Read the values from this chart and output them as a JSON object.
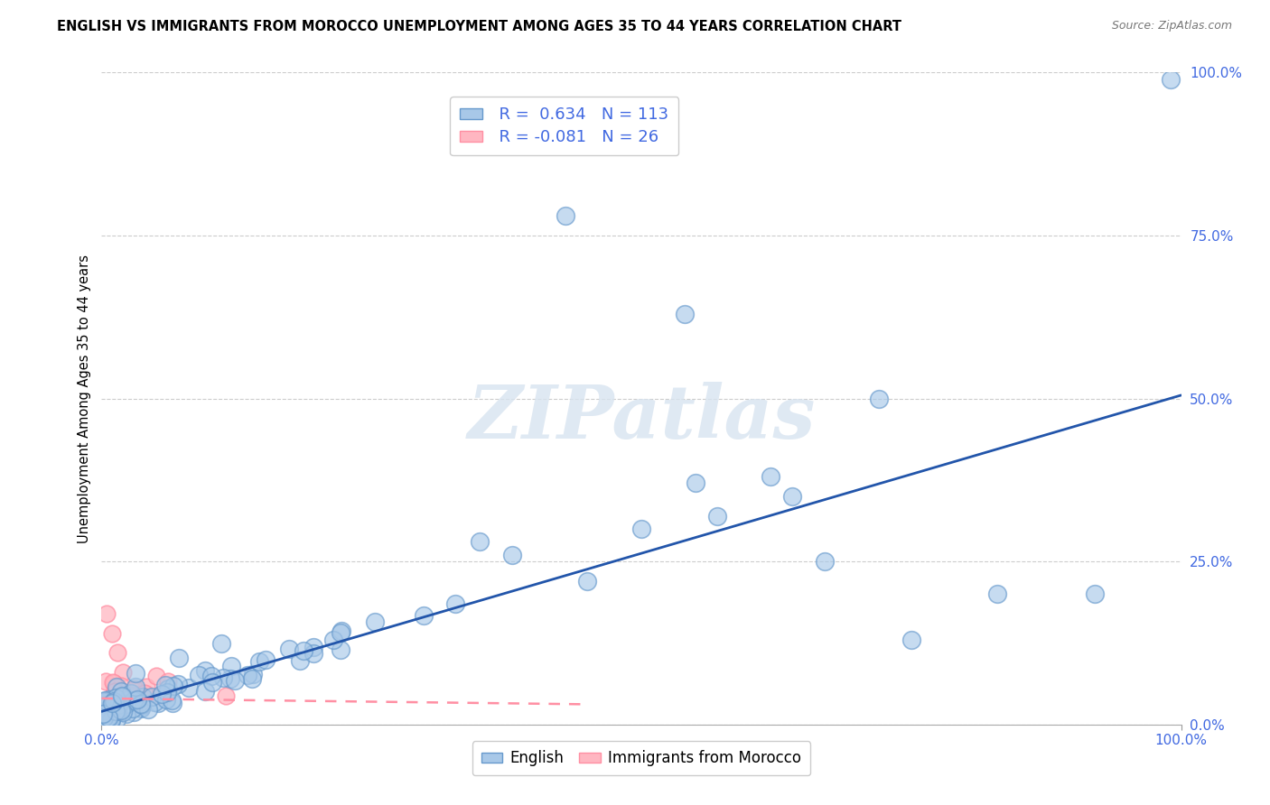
{
  "title": "ENGLISH VS IMMIGRANTS FROM MOROCCO UNEMPLOYMENT AMONG AGES 35 TO 44 YEARS CORRELATION CHART",
  "source": "Source: ZipAtlas.com",
  "ylabel": "Unemployment Among Ages 35 to 44 years",
  "xlim": [
    0,
    1
  ],
  "ylim": [
    0,
    1
  ],
  "ytick_positions": [
    0,
    0.25,
    0.5,
    0.75,
    1.0
  ],
  "ytick_labels": [
    "0.0%",
    "25.0%",
    "50.0%",
    "75.0%",
    "100.0%"
  ],
  "xtick_positions": [
    0,
    1
  ],
  "xtick_labels": [
    "0.0%",
    "100.0%"
  ],
  "watermark": "ZIPatlas",
  "english_R": 0.634,
  "english_N": 113,
  "morocco_R": -0.081,
  "morocco_N": 26,
  "blue_scatter_color": "#A8C8E8",
  "blue_edge_color": "#6699CC",
  "pink_scatter_color": "#FFB6C1",
  "pink_edge_color": "#FF8FA3",
  "blue_line_color": "#2255AA",
  "pink_line_color": "#FF8FA3",
  "background_color": "#FFFFFF",
  "grid_color": "#CCCCCC",
  "tick_color": "#4169E1",
  "title_fontsize": 10.5,
  "source_fontsize": 9,
  "watermark_color": "#D8E4F0",
  "watermark_fontsize": 60,
  "legend_text_color": "#4169E1",
  "legend_fontsize": 13
}
